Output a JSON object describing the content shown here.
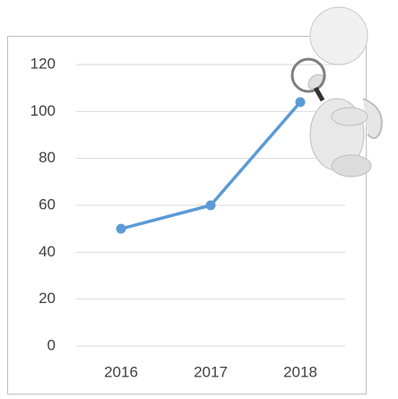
{
  "chart_data": {
    "type": "line",
    "categories": [
      "2016",
      "2017",
      "2018"
    ],
    "values": [
      50,
      60,
      104
    ],
    "color": "#5b9bd5",
    "ylim": [
      0,
      120
    ],
    "yticks": [
      0,
      20,
      40,
      60,
      80,
      100,
      120
    ],
    "grid": true
  }
}
